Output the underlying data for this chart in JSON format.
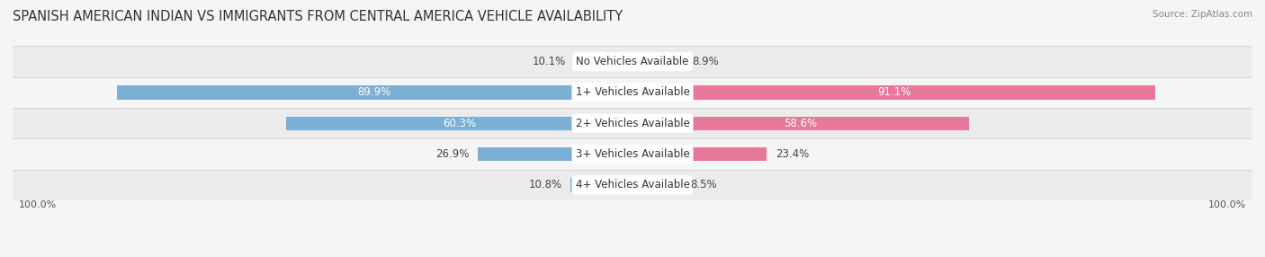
{
  "title": "SPANISH AMERICAN INDIAN VS IMMIGRANTS FROM CENTRAL AMERICA VEHICLE AVAILABILITY",
  "source": "Source: ZipAtlas.com",
  "categories": [
    "No Vehicles Available",
    "1+ Vehicles Available",
    "2+ Vehicles Available",
    "3+ Vehicles Available",
    "4+ Vehicles Available"
  ],
  "left_values": [
    10.1,
    89.9,
    60.3,
    26.9,
    10.8
  ],
  "right_values": [
    8.9,
    91.1,
    58.6,
    23.4,
    8.5
  ],
  "left_color": "#7bafd4",
  "right_color": "#e8789a",
  "left_label": "Spanish American Indian",
  "right_label": "Immigrants from Central America",
  "background_color": "#f5f5f5",
  "row_bg_even": "#ebebeb",
  "row_bg_odd": "#f5f5f5",
  "max_value": 100.0,
  "title_fontsize": 10.5,
  "value_fontsize": 8.5,
  "cat_fontsize": 8.5,
  "bar_height": 0.45
}
